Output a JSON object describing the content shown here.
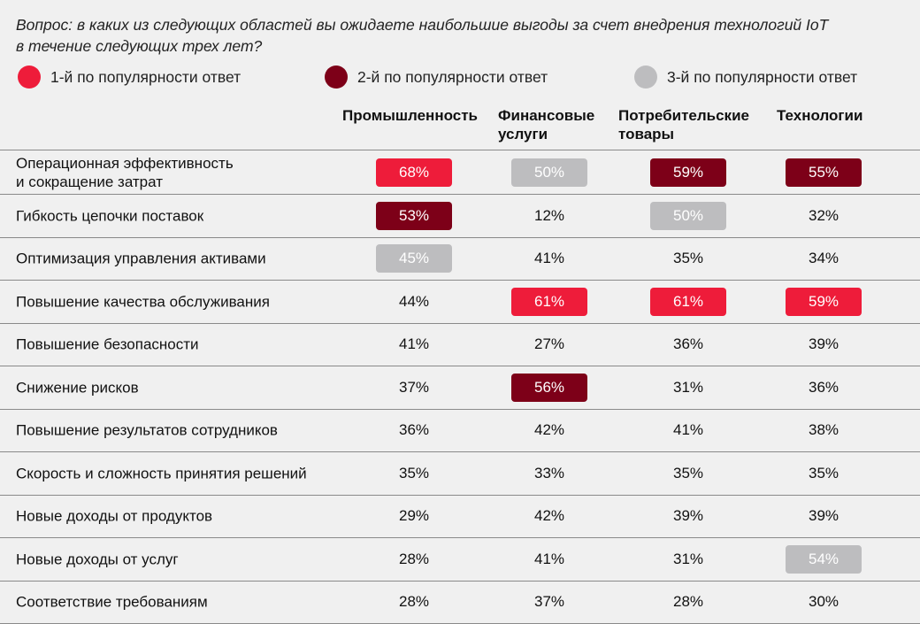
{
  "question": [
    "Вопрос: в каких из следующих областей вы ожидаете наибольшие выгоды за счет внедрения технологий IoT",
    "в течение следующих трех лет?"
  ],
  "colors": {
    "rank1": "#ee1c3a",
    "rank2": "#7d0018",
    "rank3": "#bdbdbf",
    "background": "#f0f0f0"
  },
  "legend": [
    {
      "label": "1-й по популярности ответ",
      "color": "#ee1c3a"
    },
    {
      "label": "2-й по популярности ответ",
      "color": "#7d0018"
    },
    {
      "label": "3-й по популярности ответ",
      "color": "#bdbdbf"
    }
  ],
  "chart_data": {
    "type": "table",
    "columns": [
      "Промышленность",
      "Финансовые\nуслуги",
      "Потребительские\nтовары",
      "Технологии"
    ],
    "rows": [
      {
        "label": "Операционная эффективность\nи сокращение затрат",
        "values": [
          "68%",
          "50%",
          "59%",
          "55%"
        ],
        "ranks": [
          1,
          3,
          2,
          2
        ]
      },
      {
        "label": "Гибкость цепочки поставок",
        "values": [
          "53%",
          "12%",
          "50%",
          "32%"
        ],
        "ranks": [
          2,
          0,
          3,
          0
        ]
      },
      {
        "label": "Оптимизация управления активами",
        "values": [
          "45%",
          "41%",
          "35%",
          "34%"
        ],
        "ranks": [
          3,
          0,
          0,
          0
        ]
      },
      {
        "label": "Повышение качества обслуживания",
        "values": [
          "44%",
          "61%",
          "61%",
          "59%"
        ],
        "ranks": [
          0,
          1,
          1,
          1
        ]
      },
      {
        "label": "Повышение безопасности",
        "values": [
          "41%",
          "27%",
          "36%",
          "39%"
        ],
        "ranks": [
          0,
          0,
          0,
          0
        ]
      },
      {
        "label": "Снижение рисков",
        "values": [
          "37%",
          "56%",
          "31%",
          "36%"
        ],
        "ranks": [
          0,
          2,
          0,
          0
        ]
      },
      {
        "label": "Повышение результатов сотрудников",
        "values": [
          "36%",
          "42%",
          "41%",
          "38%"
        ],
        "ranks": [
          0,
          0,
          0,
          0
        ]
      },
      {
        "label": "Скорость и сложность принятия решений",
        "values": [
          "35%",
          "33%",
          "35%",
          "35%"
        ],
        "ranks": [
          0,
          0,
          0,
          0
        ]
      },
      {
        "label": "Новые доходы от продуктов",
        "values": [
          "29%",
          "42%",
          "39%",
          "39%"
        ],
        "ranks": [
          0,
          0,
          0,
          0
        ]
      },
      {
        "label": "Новые доходы от услуг",
        "values": [
          "28%",
          "41%",
          "31%",
          "54%"
        ],
        "ranks": [
          0,
          0,
          0,
          3
        ]
      },
      {
        "label": "Соответствие требованиям",
        "values": [
          "28%",
          "37%",
          "28%",
          "30%"
        ],
        "ranks": [
          0,
          0,
          0,
          0
        ]
      }
    ]
  }
}
